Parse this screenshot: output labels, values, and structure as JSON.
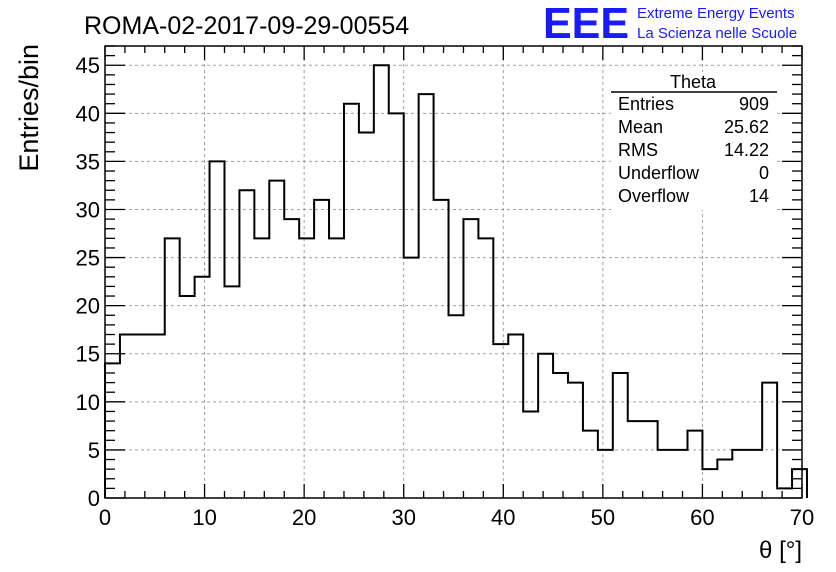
{
  "chart_data": {
    "type": "histogram",
    "title": "ROMA-02-2017-09-29-00554",
    "xlabel": "θ [°]",
    "ylabel": "Entries/bin",
    "xlim": [
      0,
      70
    ],
    "ylim": [
      0,
      47
    ],
    "x_ticks": [
      0,
      10,
      20,
      30,
      40,
      50,
      60,
      70
    ],
    "y_ticks": [
      0,
      5,
      10,
      15,
      20,
      25,
      30,
      35,
      40,
      45
    ],
    "grid": true,
    "bin_width": 1.5,
    "bin_start": 0,
    "values": [
      14,
      17,
      17,
      17,
      27,
      21,
      23,
      35,
      22,
      32,
      27,
      33,
      29,
      27,
      31,
      27,
      41,
      38,
      45,
      40,
      25,
      42,
      31,
      19,
      29,
      27,
      16,
      17,
      9,
      15,
      13,
      12,
      7,
      5,
      13,
      8,
      8,
      5,
      5,
      7,
      3,
      4,
      5,
      5,
      12,
      1,
      3
    ],
    "stats_box": {
      "title": "Theta",
      "rows": [
        {
          "label": "Entries",
          "value": "909"
        },
        {
          "label": "Mean",
          "value": "25.62"
        },
        {
          "label": "RMS",
          "value": "14.22"
        },
        {
          "label": "Underflow",
          "value": "0"
        },
        {
          "label": "Overflow",
          "value": "14"
        }
      ]
    }
  },
  "logo": {
    "mark": "EEE",
    "line1": "Extreme Energy Events",
    "line2": "La Scienza nelle Scuole",
    "color": "#1a1aff"
  }
}
